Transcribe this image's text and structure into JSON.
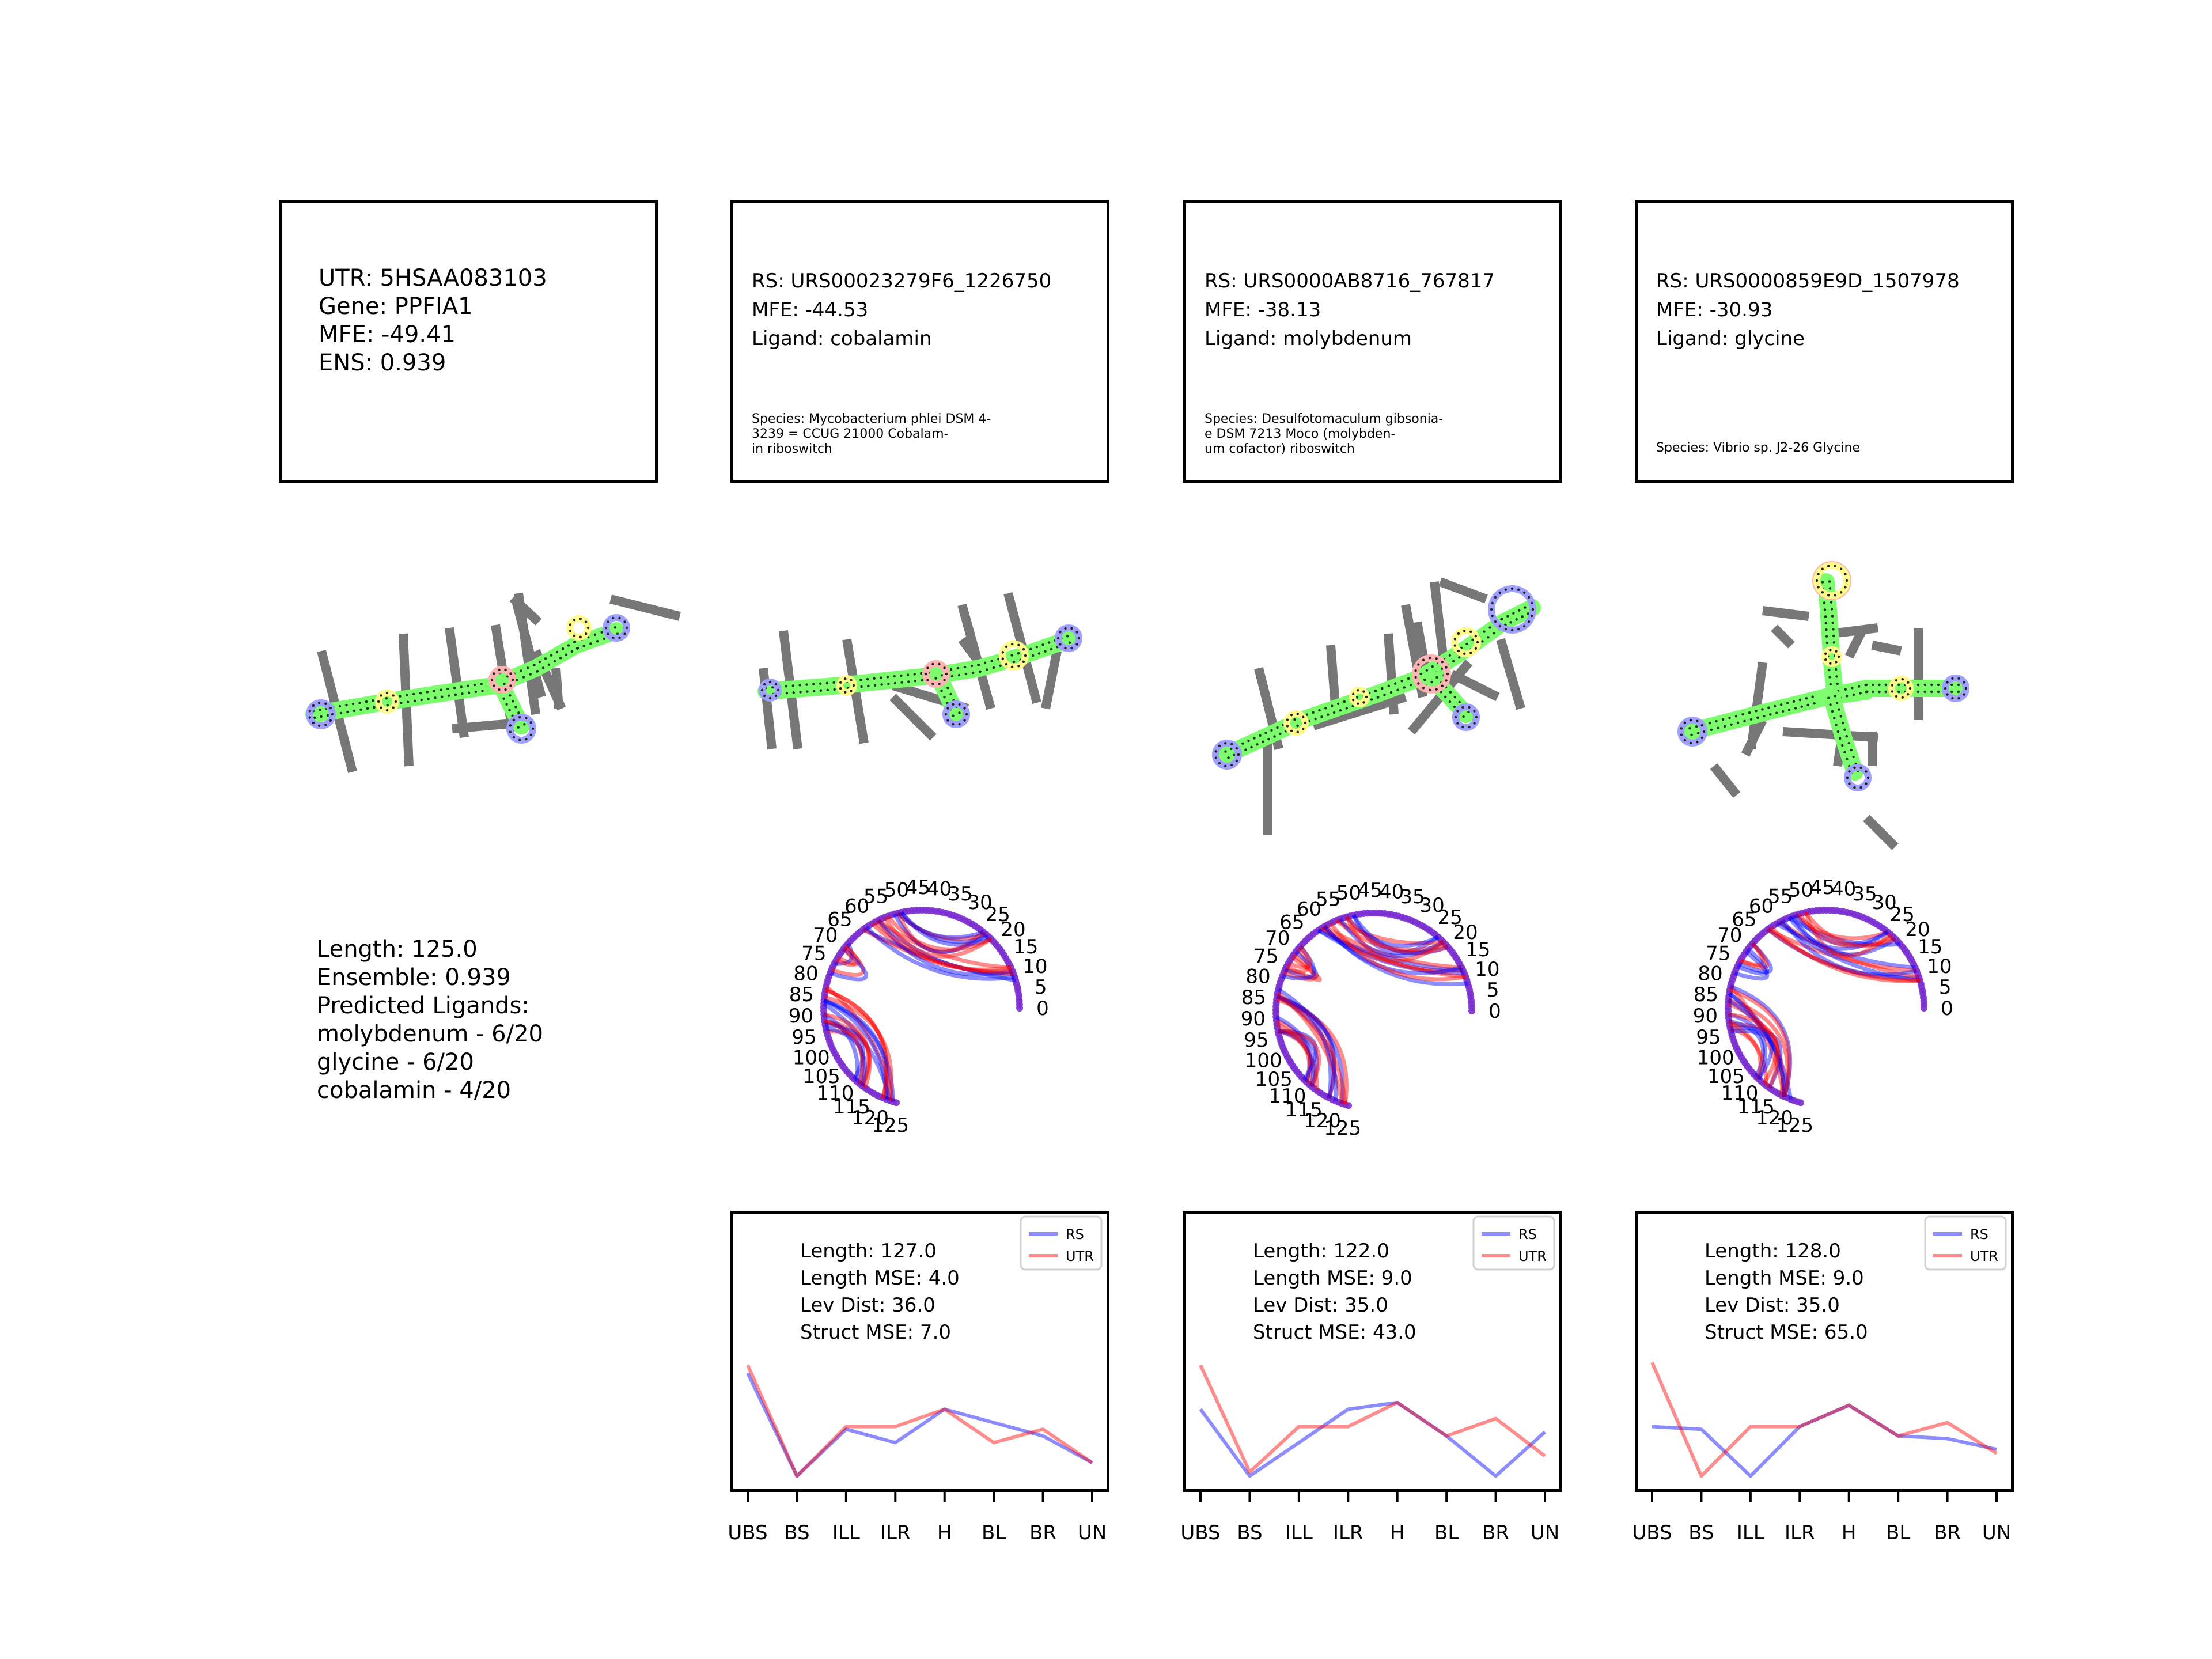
{
  "utr_panel": {
    "utr": "UTR: 5HSAA083103",
    "gene": "Gene: PPFIA1",
    "mfe": "MFE: -49.41",
    "ens": "ENS: 0.939",
    "stats": [
      "Length: 125.0",
      "Ensemble: 0.939",
      "Predicted Ligands:",
      "molybdenum - 6/20",
      "glycine - 6/20",
      "cobalamin - 4/20"
    ]
  },
  "riboswitches": [
    {
      "rs": "RS: URS00023279F6_1226750",
      "mfe": "MFE: -44.53",
      "ligand": "Ligand: cobalamin",
      "species": [
        "Species: Mycobacterium phlei DSM 4-",
        "3239 = CCUG 21000 Cobalam-",
        "in riboswitch"
      ],
      "stats": [
        "Length: 127.0",
        "Length MSE: 4.0",
        "Lev Dist: 36.0",
        "Struct MSE: 7.0"
      ]
    },
    {
      "rs": "RS: URS0000AB8716_767817",
      "mfe": "MFE: -38.13",
      "ligand": "Ligand: molybdenum",
      "species": [
        "Species: Desulfotomaculum gibsonia-",
        "e DSM 7213 Moco (molybden-",
        "um cofactor) riboswitch"
      ],
      "stats": [
        "Length: 122.0",
        "Length MSE: 9.0",
        "Lev Dist: 35.0",
        "Struct MSE: 43.0"
      ]
    },
    {
      "rs": "RS: URS0000859E9D_1507978",
      "mfe": "MFE: -30.93",
      "ligand": "Ligand: glycine",
      "species": [
        "Species: Vibrio sp. J2-26 Glycine"
      ],
      "stats": [
        "Length: 128.0",
        "Length MSE: 9.0",
        "Lev Dist: 35.0",
        "Struct MSE: 65.0"
      ]
    }
  ],
  "arc_diagram": {
    "tick_labels": [
      "0",
      "5",
      "10",
      "15",
      "20",
      "25",
      "30",
      "35",
      "40",
      "45",
      "50",
      "55",
      "60",
      "65",
      "70",
      "75",
      "80",
      "85",
      "90",
      "95",
      "100",
      "105",
      "110",
      "115",
      "120",
      "125"
    ],
    "colors": {
      "rs": "#0000ff",
      "utr": "#ff0000",
      "node": "#7b2fd0"
    }
  },
  "structure_colors": {
    "stem": "#7dfc6e",
    "hairpin": "#a0a0ff",
    "interior": "#fffa8c",
    "bulge": "#ffb4b4",
    "branch": "#777777"
  },
  "chart_data": [
    {
      "type": "line",
      "categories": [
        "UBS",
        "BS",
        "ILL",
        "ILR",
        "H",
        "BL",
        "BR",
        "UN"
      ],
      "legend": {
        "placement": "top-right",
        "entries": [
          "RS",
          "UTR"
        ]
      },
      "series": [
        {
          "name": "RS",
          "color": "#0000ff",
          "values": [
            0.82,
            0.05,
            0.4,
            0.3,
            0.55,
            0.45,
            0.35,
            0.15
          ]
        },
        {
          "name": "UTR",
          "color": "#ff0000",
          "values": [
            0.88,
            0.05,
            0.42,
            0.42,
            0.55,
            0.3,
            0.4,
            0.15
          ]
        }
      ],
      "ylim": [
        0,
        1
      ]
    },
    {
      "type": "line",
      "categories": [
        "UBS",
        "BS",
        "ILL",
        "ILR",
        "H",
        "BL",
        "BR",
        "UN"
      ],
      "legend": {
        "placement": "top-right",
        "entries": [
          "RS",
          "UTR"
        ]
      },
      "series": [
        {
          "name": "RS",
          "color": "#0000ff",
          "values": [
            0.55,
            0.05,
            0.3,
            0.55,
            0.6,
            0.35,
            0.05,
            0.38
          ]
        },
        {
          "name": "UTR",
          "color": "#ff0000",
          "values": [
            0.88,
            0.08,
            0.42,
            0.42,
            0.6,
            0.35,
            0.48,
            0.2
          ]
        }
      ],
      "ylim": [
        0,
        1
      ]
    },
    {
      "type": "line",
      "categories": [
        "UBS",
        "BS",
        "ILL",
        "ILR",
        "H",
        "BL",
        "BR",
        "UN"
      ],
      "legend": {
        "placement": "top-right",
        "entries": [
          "RS",
          "UTR"
        ]
      },
      "series": [
        {
          "name": "RS",
          "color": "#0000ff",
          "values": [
            0.42,
            0.4,
            0.05,
            0.42,
            0.58,
            0.35,
            0.33,
            0.25
          ]
        },
        {
          "name": "UTR",
          "color": "#ff0000",
          "values": [
            0.9,
            0.05,
            0.42,
            0.42,
            0.58,
            0.35,
            0.45,
            0.22
          ]
        }
      ],
      "ylim": [
        0,
        1
      ]
    }
  ]
}
